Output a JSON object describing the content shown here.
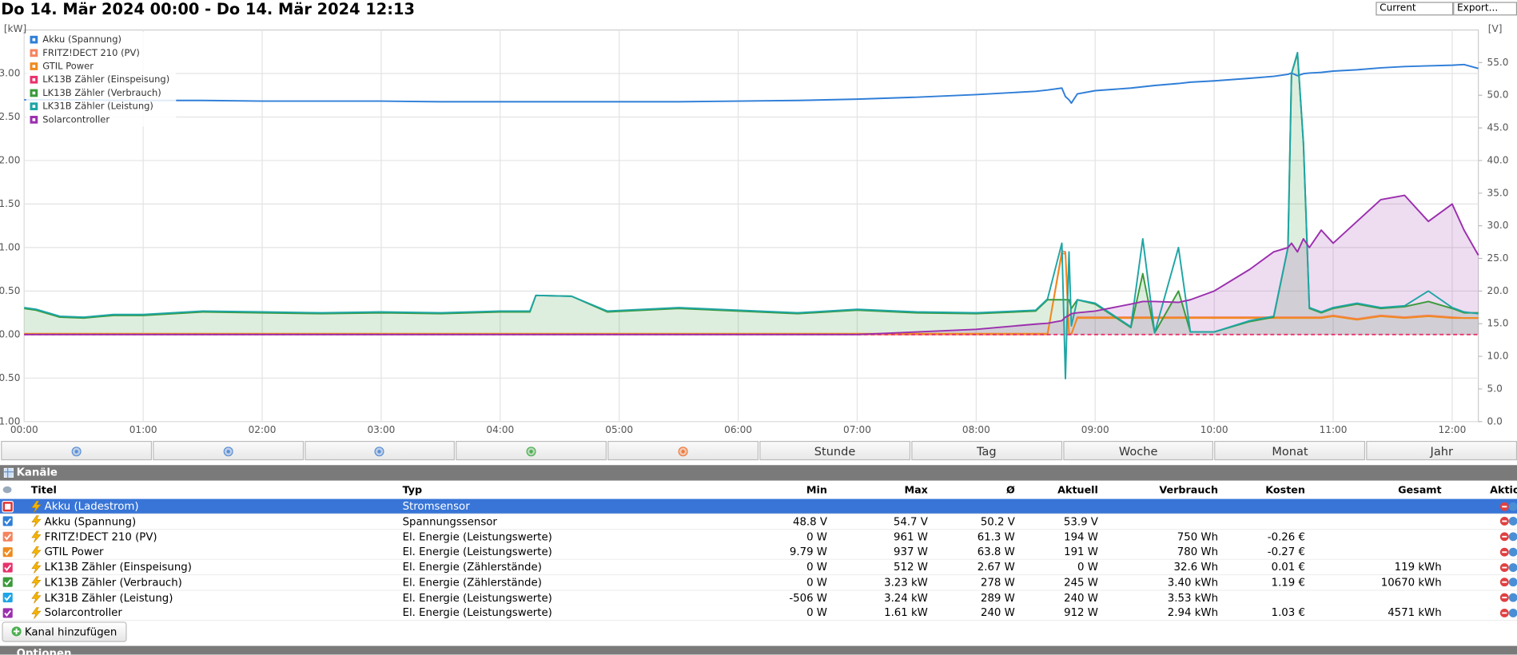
{
  "header": {
    "title": "Do 14. Mär 2024 00:00 - Do 14. Mär 2024 12:13",
    "period_select": "Current",
    "export_select": "Export..."
  },
  "chart_data": {
    "type": "line",
    "y_label": "[kW]",
    "y2_label": "[V]",
    "x": [
      0,
      0.1,
      0.3,
      0.5,
      0.75,
      1.0,
      1.5,
      2.0,
      2.5,
      3.0,
      3.5,
      4.0,
      4.25,
      4.3,
      4.6,
      4.9,
      5.5,
      6.0,
      6.5,
      7.0,
      7.5,
      8.0,
      8.5,
      8.6,
      8.72,
      8.75,
      8.78,
      8.8,
      8.85,
      9.0,
      9.3,
      9.4,
      9.5,
      9.7,
      9.8,
      10.0,
      10.3,
      10.5,
      10.62,
      10.65,
      10.7,
      10.75,
      10.8,
      10.9,
      11.0,
      11.2,
      11.4,
      11.6,
      11.8,
      12.0,
      12.1,
      12.22
    ],
    "xlim": [
      0,
      12.22
    ],
    "xticks": [
      {
        "value": 0,
        "label": "00:00"
      },
      {
        "value": 1,
        "label": "01:00"
      },
      {
        "value": 2,
        "label": "02:00"
      },
      {
        "value": 3,
        "label": "03:00"
      },
      {
        "value": 4,
        "label": "04:00"
      },
      {
        "value": 5,
        "label": "05:00"
      },
      {
        "value": 6,
        "label": "06:00"
      },
      {
        "value": 7,
        "label": "07:00"
      },
      {
        "value": 8,
        "label": "08:00"
      },
      {
        "value": 9,
        "label": "09:00"
      },
      {
        "value": 10,
        "label": "10:00"
      },
      {
        "value": 11,
        "label": "11:00"
      },
      {
        "value": 12,
        "label": "12:00"
      }
    ],
    "ylim": [
      -1,
      3.5
    ],
    "yticks": [
      {
        "value": -1,
        "label": "-1.00"
      },
      {
        "value": -0.5,
        "label": "-0.50"
      },
      {
        "value": 0,
        "label": "0.00"
      },
      {
        "value": 0.5,
        "label": "0.50"
      },
      {
        "value": 1,
        "label": "1.00"
      },
      {
        "value": 1.5,
        "label": "1.50"
      },
      {
        "value": 2,
        "label": "2.00"
      },
      {
        "value": 2.5,
        "label": "2.50"
      },
      {
        "value": 3,
        "label": "3.00"
      }
    ],
    "y2lim": [
      0,
      60
    ],
    "y2ticks": [
      {
        "value": 0,
        "label": "0.0"
      },
      {
        "value": 5,
        "label": "5.0"
      },
      {
        "value": 10,
        "label": "10.0"
      },
      {
        "value": 15,
        "label": "15.0"
      },
      {
        "value": 20,
        "label": "20.0"
      },
      {
        "value": 25,
        "label": "25.0"
      },
      {
        "value": 30,
        "label": "30.0"
      },
      {
        "value": 35,
        "label": "35.0"
      },
      {
        "value": 40,
        "label": "40.0"
      },
      {
        "value": 45,
        "label": "45.0"
      },
      {
        "value": 50,
        "label": "50.0"
      },
      {
        "value": 55,
        "label": "55.0"
      }
    ],
    "grid": true,
    "legend": "top-left",
    "series": [
      {
        "name": "Akku (Spannung)",
        "color": "#2f7ed8",
        "axis": "y2",
        "values": [
          49.3,
          49.3,
          49.3,
          49.3,
          49.2,
          49.2,
          49.2,
          49.1,
          49.1,
          49.1,
          49.0,
          49.0,
          49.0,
          49.0,
          49.0,
          49.0,
          49.0,
          49.1,
          49.2,
          49.4,
          49.7,
          50.1,
          50.6,
          50.8,
          51.1,
          49.8,
          49.3,
          48.8,
          50.2,
          50.7,
          51.1,
          51.3,
          51.5,
          51.8,
          52.0,
          52.2,
          52.6,
          52.9,
          53.2,
          53.4,
          53.0,
          53.3,
          53.4,
          53.5,
          53.7,
          53.9,
          54.2,
          54.4,
          54.5,
          54.6,
          54.7,
          54.1
        ]
      },
      {
        "name": "FRITZ!DECT 210 (PV)",
        "color": "#f4845f",
        "values": [
          0,
          0,
          0,
          0,
          0,
          0,
          0,
          0,
          0,
          0,
          0,
          0,
          0,
          0,
          0,
          0,
          0,
          0,
          0,
          0,
          0,
          0,
          0,
          0,
          0.96,
          0.95,
          0,
          0,
          0.2,
          0.2,
          0.2,
          0.2,
          0.2,
          0.2,
          0.2,
          0.2,
          0.2,
          0.2,
          0.2,
          0.2,
          0.2,
          0.2,
          0.2,
          0.2,
          0.22,
          0.18,
          0.22,
          0.2,
          0.22,
          0.2,
          0.19,
          0.19
        ]
      },
      {
        "name": "GTIL Power",
        "color": "#ef8a1f",
        "values": [
          0.01,
          0.01,
          0.01,
          0.01,
          0.01,
          0.01,
          0.01,
          0.01,
          0.01,
          0.01,
          0.01,
          0.01,
          0.01,
          0.01,
          0.01,
          0.01,
          0.01,
          0.01,
          0.01,
          0.01,
          0.01,
          0.01,
          0.01,
          0.01,
          0.93,
          0.93,
          0.01,
          0.01,
          0.19,
          0.19,
          0.19,
          0.19,
          0.19,
          0.19,
          0.19,
          0.19,
          0.19,
          0.19,
          0.19,
          0.19,
          0.19,
          0.19,
          0.19,
          0.19,
          0.21,
          0.17,
          0.21,
          0.19,
          0.21,
          0.19,
          0.19,
          0.19
        ]
      },
      {
        "name": "LK13B Zähler (Einspeisung)",
        "color": "#e8336d",
        "line_style": "dashed",
        "values": [
          0,
          0,
          0,
          0,
          0,
          0,
          0,
          0,
          0,
          0,
          0,
          0,
          0,
          0,
          0,
          0,
          0,
          0,
          0,
          0,
          0,
          0,
          0,
          0,
          0,
          0,
          0,
          0,
          0,
          0,
          0,
          0,
          0,
          0,
          0,
          0,
          0,
          0,
          0,
          0,
          0,
          0,
          0,
          0,
          0,
          0,
          0,
          0,
          0,
          0,
          0,
          0
        ]
      },
      {
        "name": "LK13B Zähler (Verbrauch)",
        "color": "#3a9a3a",
        "area": true,
        "values": [
          0.3,
          0.28,
          0.2,
          0.19,
          0.22,
          0.22,
          0.26,
          0.25,
          0.24,
          0.25,
          0.24,
          0.26,
          0.26,
          0.45,
          0.44,
          0.26,
          0.3,
          0.27,
          0.24,
          0.28,
          0.25,
          0.24,
          0.27,
          0.4,
          0.4,
          0.4,
          0.4,
          0.3,
          0.4,
          0.35,
          0.08,
          0.7,
          0.02,
          0.5,
          0.03,
          0.03,
          0.15,
          0.2,
          1.0,
          3.0,
          3.23,
          2.2,
          0.3,
          0.25,
          0.3,
          0.35,
          0.3,
          0.32,
          0.38,
          0.3,
          0.25,
          0.25
        ]
      },
      {
        "name": "LK31B Zähler (Leistung)",
        "color": "#1fa5a5",
        "values": [
          0.31,
          0.29,
          0.21,
          0.2,
          0.23,
          0.23,
          0.27,
          0.26,
          0.25,
          0.26,
          0.25,
          0.27,
          0.27,
          0.45,
          0.44,
          0.27,
          0.31,
          0.28,
          0.25,
          0.29,
          0.26,
          0.25,
          0.28,
          0.41,
          1.05,
          -0.506,
          0.95,
          0.1,
          0.4,
          0.36,
          0.09,
          1.1,
          0.02,
          1.0,
          0.03,
          0.03,
          0.16,
          0.21,
          1.0,
          3.0,
          3.24,
          2.2,
          0.31,
          0.26,
          0.31,
          0.36,
          0.31,
          0.33,
          0.5,
          0.31,
          0.26,
          0.24
        ]
      },
      {
        "name": "Solarcontroller",
        "color": "#9b2fae",
        "area": true,
        "values": [
          0,
          0,
          0,
          0,
          0,
          0,
          0,
          0,
          0,
          0,
          0,
          0,
          0,
          0,
          0,
          0,
          0,
          0,
          0,
          0,
          0.03,
          0.06,
          0.12,
          0.13,
          0.16,
          0.2,
          0.22,
          0.24,
          0.25,
          0.27,
          0.35,
          0.38,
          0.38,
          0.37,
          0.4,
          0.5,
          0.75,
          0.95,
          1.0,
          1.05,
          0.95,
          1.1,
          1.0,
          1.2,
          1.05,
          1.3,
          1.55,
          1.6,
          1.3,
          1.5,
          1.2,
          0.912
        ]
      }
    ]
  },
  "toolbar": [
    "Stunde",
    "Tag",
    "Woche",
    "Monat",
    "Jahr"
  ],
  "panel": "Kanäle",
  "table": {
    "columns": [
      "Titel",
      "Typ",
      "Min",
      "Max",
      "Ø",
      "Aktuell",
      "Verbrauch",
      "Kosten",
      "Gesamt",
      "Aktion"
    ],
    "rows": [
      {
        "color": "#e03030",
        "checked": false,
        "selected": true,
        "cells": [
          "Akku (Ladestrom)",
          "Stromsensor",
          null,
          null,
          null,
          null,
          null,
          null,
          null
        ]
      },
      {
        "color": "#2f7ed8",
        "checked": true,
        "cells": [
          "Akku (Spannung)",
          "Spannungssensor",
          "48.8 V",
          "54.7 V",
          "50.2 V",
          "53.9 V",
          null,
          null,
          null
        ]
      },
      {
        "color": "#f4845f",
        "checked": true,
        "cells": [
          "FRITZ!DECT 210 (PV)",
          "El. Energie (Leistungswerte)",
          "0 W",
          "961 W",
          "61.3 W",
          "194 W",
          "750 Wh",
          "-0.26 €",
          null
        ]
      },
      {
        "color": "#ef8a1f",
        "checked": true,
        "cells": [
          "GTIL Power",
          "El. Energie (Leistungswerte)",
          "9.79 W",
          "937 W",
          "63.8 W",
          "191 W",
          "780 Wh",
          "-0.27 €",
          null
        ]
      },
      {
        "color": "#e8336d",
        "checked": true,
        "cells": [
          "LK13B Zähler (Einspeisung)",
          "El. Energie (Zählerstände)",
          "0 W",
          "512 W",
          "2.67 W",
          "0 W",
          "32.6 Wh",
          "0.01 €",
          "119 kWh"
        ]
      },
      {
        "color": "#3a9a3a",
        "checked": true,
        "cells": [
          "LK13B Zähler (Verbrauch)",
          "El. Energie (Zählerstände)",
          "0 W",
          "3.23 kW",
          "278 W",
          "245 W",
          "3.40 kWh",
          "1.19 €",
          "10670 kWh"
        ]
      },
      {
        "color": "#1fa5e5",
        "checked": true,
        "cells": [
          "LK31B Zähler (Leistung)",
          "El. Energie (Leistungswerte)",
          "-506 W",
          "3.24 kW",
          "289 W",
          "240 W",
          "3.53 kWh",
          null,
          null
        ]
      },
      {
        "color": "#9b2fae",
        "checked": true,
        "cells": [
          "Solarcontroller",
          "El. Energie (Leistungswerte)",
          "0 W",
          "1.61 kW",
          "240 W",
          "912 W",
          "2.94 kWh",
          "1.03 €",
          "4571 kWh"
        ]
      }
    ]
  },
  "add_button": "Kanal hinzufügen",
  "options": "Optionen"
}
